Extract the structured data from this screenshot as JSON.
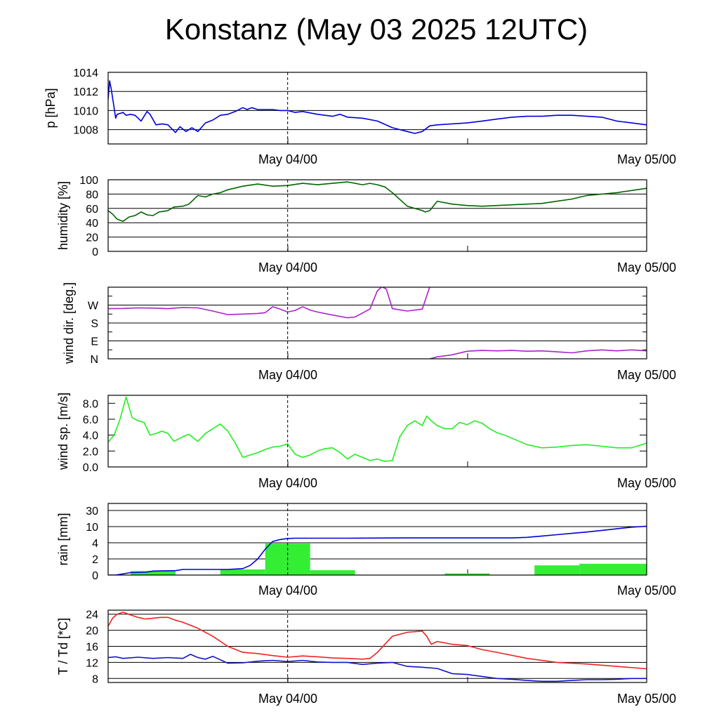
{
  "title": "Konstanz (May 03 2025 12UTC)",
  "date_labels": [
    "May 04/00",
    "May 05/00"
  ],
  "chart_data": [
    {
      "id": "pressure",
      "type": "line",
      "ylabel": "p [hPa]",
      "yticks": [
        1008,
        1010,
        1012,
        1014
      ],
      "ytick_labels": [
        "1008",
        "1010",
        "1012",
        "1014"
      ],
      "ylim": [
        1006.5,
        1014
      ],
      "x_unit": "hours since May 03 12UTC",
      "xlim": [
        0,
        36
      ],
      "series": [
        {
          "color": "#0000dd",
          "x": [
            0,
            0.1,
            0.2,
            0.4,
            0.5,
            0.6,
            0.8,
            1.0,
            1.2,
            1.5,
            1.8,
            2.2,
            2.6,
            2.8,
            3.2,
            3.6,
            4.0,
            4.5,
            4.8,
            5.2,
            5.6,
            6.0,
            6.5,
            7.0,
            7.5,
            8.0,
            8.5,
            9.0,
            9.3,
            9.6,
            10.0,
            10.5,
            11.0,
            11.5,
            12.0,
            12.5,
            13.0,
            14.0,
            15.0,
            15.5,
            16.0,
            17.0,
            18.0,
            19.0,
            20.0,
            20.5,
            21.0,
            21.5,
            22.0,
            23.0,
            24.0,
            25.0,
            26.0,
            27.0,
            28.0,
            29.0,
            30.0,
            31.0,
            32.0,
            33.0,
            34.0,
            35.0,
            36.0
          ],
          "values": [
            1011.2,
            1013.1,
            1012.3,
            1010.3,
            1009.2,
            1009.6,
            1009.7,
            1009.8,
            1009.5,
            1009.6,
            1009.5,
            1008.9,
            1009.9,
            1009.6,
            1008.5,
            1008.6,
            1008.5,
            1007.7,
            1008.3,
            1007.8,
            1008.2,
            1007.8,
            1008.7,
            1009.0,
            1009.5,
            1009.6,
            1009.9,
            1010.3,
            1010.1,
            1010.3,
            1010.1,
            1010.1,
            1010.1,
            1010.0,
            1010.0,
            1009.8,
            1009.9,
            1009.6,
            1009.4,
            1009.6,
            1009.3,
            1009.2,
            1008.9,
            1008.2,
            1007.8,
            1007.6,
            1007.8,
            1008.4,
            1008.5,
            1008.6,
            1008.7,
            1008.9,
            1009.1,
            1009.3,
            1009.4,
            1009.4,
            1009.5,
            1009.5,
            1009.4,
            1009.3,
            1008.9,
            1008.7,
            1008.5
          ]
        }
      ],
      "grid": true,
      "marker_line_x": 12
    },
    {
      "id": "humidity",
      "type": "line",
      "ylabel": "humidity [%]",
      "yticks": [
        0,
        20,
        40,
        60,
        80,
        100
      ],
      "ytick_labels": [
        "0",
        "20",
        "40",
        "60",
        "80",
        "100"
      ],
      "ylim": [
        0,
        100
      ],
      "x_unit": "hours since May 03 12UTC",
      "xlim": [
        0,
        36
      ],
      "series": [
        {
          "color": "#006600",
          "x": [
            0,
            0.3,
            0.6,
            1.0,
            1.4,
            1.8,
            2.2,
            2.6,
            3.0,
            3.4,
            4.0,
            4.4,
            5.0,
            5.4,
            6.0,
            6.5,
            7.0,
            7.5,
            8.0,
            9.0,
            10.0,
            11.0,
            12.0,
            13.0,
            14.0,
            15.0,
            16.0,
            17.0,
            17.5,
            18.0,
            18.5,
            19.0,
            20.0,
            21.0,
            21.2,
            21.5,
            22.0,
            23.0,
            24.0,
            25.0,
            26.0,
            27.0,
            28.0,
            29.0,
            30.0,
            31.0,
            32.0,
            33.0,
            34.0,
            35.0,
            36.0
          ],
          "values": [
            57,
            52,
            45,
            42,
            48,
            50,
            55,
            51,
            50,
            55,
            57,
            62,
            63,
            66,
            78,
            76,
            80,
            82,
            86,
            91,
            94,
            91,
            92,
            95,
            93,
            95,
            97,
            93,
            95,
            93,
            90,
            82,
            63,
            57,
            55,
            57,
            70,
            66,
            64,
            63,
            64,
            65,
            66,
            67,
            70,
            73,
            78,
            80,
            82,
            85,
            88
          ]
        }
      ],
      "grid": true,
      "marker_line_x": 12
    },
    {
      "id": "wind_direction",
      "type": "line",
      "ylabel": "wind dir. [deg.]",
      "yticks": [
        0,
        90,
        180,
        270
      ],
      "ytick_labels": [
        "N",
        "E",
        "S",
        "W"
      ],
      "ylim": [
        0,
        360
      ],
      "x_unit": "hours since May 03 12UTC",
      "xlim": [
        0,
        36
      ],
      "series": [
        {
          "color": "#aa22cc",
          "x": [
            0,
            1,
            2,
            3,
            4,
            5,
            6,
            7,
            8,
            9,
            10,
            10.5,
            11,
            11.5,
            12,
            12.5,
            13,
            13.5,
            14,
            15,
            16,
            16.5,
            17,
            17.5,
            18,
            18.3,
            18.6,
            19,
            20,
            21,
            21.5
          ],
          "values": [
            252,
            253,
            256,
            255,
            252,
            258,
            256,
            240,
            222,
            225,
            228,
            232,
            262,
            250,
            235,
            243,
            262,
            245,
            235,
            220,
            206,
            210,
            230,
            250,
            342,
            362,
            350,
            252,
            240,
            250,
            362
          ]
        },
        {
          "color": "#aa22cc",
          "x": [
            21.5,
            22,
            23,
            24,
            25,
            26,
            27,
            28,
            29,
            30,
            31,
            32,
            33,
            34,
            35,
            36
          ],
          "values": [
            0,
            10,
            20,
            38,
            42,
            40,
            42,
            38,
            40,
            35,
            30,
            40,
            45,
            40,
            45,
            40
          ]
        }
      ],
      "grid": true,
      "marker_line_x": 12
    },
    {
      "id": "wind_speed",
      "type": "line",
      "ylabel": "wind sp. [m/s]",
      "yticks": [
        0,
        2,
        4,
        6,
        8
      ],
      "ytick_labels": [
        "0.0",
        "2.0",
        "4.0",
        "6.0",
        "8.0"
      ],
      "ylim": [
        0,
        9
      ],
      "x_unit": "hours since May 03 12UTC",
      "xlim": [
        0,
        36
      ],
      "series": [
        {
          "color": "#22ee22",
          "x": [
            0,
            0.4,
            0.8,
            1.2,
            1.6,
            2.0,
            2.4,
            2.8,
            3.2,
            3.6,
            4.0,
            4.4,
            5.0,
            5.4,
            6.0,
            6.5,
            7.0,
            7.5,
            8.0,
            8.5,
            9.0,
            9.5,
            10.0,
            10.5,
            11.0,
            11.5,
            12.0,
            12.5,
            13.0,
            13.5,
            14.0,
            14.5,
            15.0,
            15.5,
            16.0,
            16.5,
            17.0,
            17.5,
            18.0,
            18.5,
            19.0,
            19.5,
            20.0,
            20.5,
            21.0,
            21.3,
            21.6,
            22.0,
            22.5,
            23.0,
            23.5,
            24.0,
            24.5,
            25.0,
            25.5,
            26.0,
            26.5,
            27.0,
            27.5,
            28.0,
            29.0,
            30.0,
            31.0,
            32.0,
            33.0,
            34.0,
            35.0,
            36.0
          ],
          "values": [
            3.1,
            4.0,
            6.0,
            8.8,
            6.2,
            5.8,
            5.6,
            4.0,
            4.2,
            4.5,
            4.2,
            3.2,
            3.8,
            4.1,
            3.2,
            4.2,
            4.8,
            5.4,
            4.5,
            3.0,
            1.2,
            1.5,
            1.8,
            2.2,
            2.5,
            2.6,
            2.9,
            1.6,
            1.2,
            1.5,
            2.0,
            2.3,
            2.4,
            1.8,
            1.0,
            1.6,
            1.2,
            0.8,
            1.0,
            0.7,
            0.8,
            3.8,
            5.2,
            5.8,
            5.2,
            6.4,
            5.8,
            5.2,
            4.8,
            4.8,
            5.6,
            5.3,
            5.8,
            5.5,
            4.8,
            4.3,
            4.0,
            3.6,
            3.2,
            2.8,
            2.4,
            2.5,
            2.7,
            2.8,
            2.6,
            2.4,
            2.4,
            3.0
          ]
        }
      ],
      "grid": false,
      "marker_line_x": 12
    },
    {
      "id": "rain",
      "type": "bar+line",
      "ylabel": "rain [mm]",
      "yticks": [
        0,
        2,
        4,
        10,
        30
      ],
      "ytick_labels": [
        "0",
        "2",
        "4",
        "10",
        "30"
      ],
      "ylim": [
        0,
        30
      ],
      "x_unit": "hours since May 03 12UTC",
      "xlim": [
        0,
        36
      ],
      "bars": {
        "color": "#33ee33",
        "x_start": [
          1.5,
          7.5,
          10.5,
          13.5,
          22.5,
          28.5,
          31.5
        ],
        "x_end": [
          4.5,
          10.5,
          13.5,
          16.5,
          25.5,
          31.5,
          36.0
        ],
        "values": [
          0.5,
          0.7,
          3.9,
          0.6,
          0.2,
          1.2,
          1.4
        ]
      },
      "series": [
        {
          "color": "#0000dd",
          "x": [
            0,
            0.5,
            1.5,
            2.5,
            3.0,
            4.5,
            5.0,
            7.5,
            8.0,
            9.0,
            9.5,
            10.0,
            10.5,
            11.0,
            11.5,
            12.0,
            12.5,
            13.0,
            13.5,
            14.0,
            16.0,
            20.0,
            22.0,
            25.0,
            27.0,
            28.0,
            29.0,
            30.0,
            31.0,
            32.0,
            33.0,
            34.0,
            35.0,
            36.0
          ],
          "values": [
            0,
            0,
            0.3,
            0.35,
            0.5,
            0.55,
            0.7,
            0.7,
            0.7,
            0.8,
            1.2,
            2.0,
            3.2,
            4.5,
            5.2,
            5.6,
            5.7,
            5.7,
            5.7,
            5.7,
            5.7,
            5.8,
            5.8,
            5.8,
            5.8,
            6.0,
            6.5,
            7.0,
            7.5,
            8.0,
            8.6,
            9.2,
            9.8,
            10.5
          ]
        }
      ],
      "grid": true,
      "marker_line_x": 12
    },
    {
      "id": "temperature",
      "type": "line",
      "ylabel": "T / Td [*C]",
      "yticks": [
        8,
        12,
        16,
        20,
        24
      ],
      "ytick_labels": [
        "8",
        "12",
        "16",
        "20",
        "24"
      ],
      "ylim": [
        7,
        25
      ],
      "x_unit": "hours since May 03 12UTC",
      "xlim": [
        0,
        36
      ],
      "series": [
        {
          "name": "T",
          "color": "#ee2222",
          "x": [
            0,
            0.3,
            0.6,
            1.0,
            1.5,
            2.0,
            2.5,
            3.0,
            3.5,
            4.0,
            4.5,
            5.0,
            6.0,
            7.0,
            8.0,
            9.0,
            10.0,
            11.0,
            12.0,
            13.0,
            14.0,
            15.0,
            16.0,
            17.0,
            17.5,
            18.0,
            19.0,
            20.0,
            21.0,
            21.3,
            21.6,
            22.0,
            23.0,
            24.0,
            25.0,
            26.0,
            28.0,
            30.0,
            32.0,
            34.0,
            36.0
          ],
          "values": [
            21,
            23,
            24,
            24.5,
            23.8,
            23.2,
            22.8,
            23.0,
            23.2,
            23.2,
            22.5,
            22.0,
            20.5,
            18.5,
            16.0,
            14.5,
            14.2,
            13.7,
            13.3,
            13.6,
            13.4,
            13.1,
            13.0,
            12.8,
            13.0,
            14.5,
            18.5,
            19.5,
            19.8,
            18.5,
            16.5,
            17.2,
            16.5,
            16.2,
            15.2,
            14.5,
            13.0,
            12.0,
            11.6,
            11.0,
            10.4
          ]
        },
        {
          "name": "Td",
          "color": "#1111cc",
          "x": [
            0,
            0.5,
            1.0,
            2.0,
            3.0,
            4.0,
            5.0,
            5.5,
            6.0,
            6.5,
            7.0,
            8.0,
            9.0,
            10.0,
            11.0,
            12.0,
            13.0,
            14.0,
            15.0,
            16.0,
            17.0,
            18.0,
            19.0,
            20.0,
            21.0,
            22.0,
            23.0,
            24.0,
            25.0,
            26.0,
            27.0,
            28.0,
            29.0,
            30.0,
            31.0,
            32.0,
            33.0,
            34.0,
            35.0,
            36.0
          ],
          "values": [
            13.2,
            13.4,
            13.0,
            13.3,
            13.0,
            13.2,
            13.0,
            14.0,
            13.2,
            12.8,
            13.5,
            11.8,
            11.9,
            12.3,
            12.5,
            12.2,
            12.5,
            12.1,
            12.0,
            12.0,
            11.5,
            11.8,
            12.0,
            11.0,
            10.8,
            10.5,
            9.2,
            9.0,
            8.5,
            8.0,
            7.8,
            7.5,
            7.3,
            7.3,
            7.5,
            7.7,
            7.7,
            7.8,
            8.0,
            8.0
          ]
        }
      ],
      "grid": true,
      "marker_line_x": 12
    }
  ]
}
